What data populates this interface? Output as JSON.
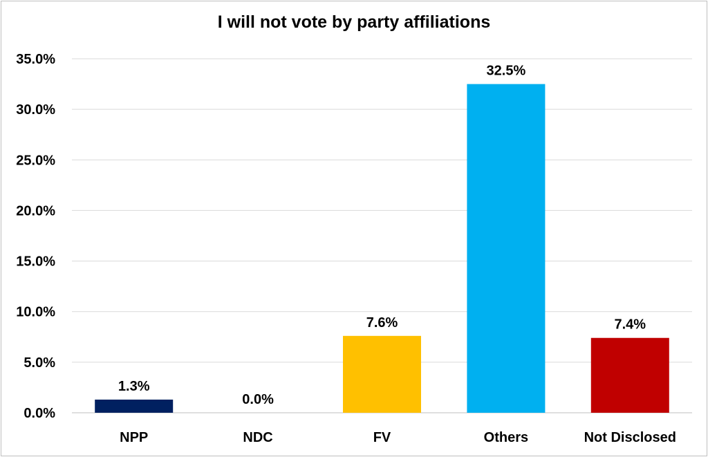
{
  "chart_data": {
    "type": "bar",
    "title": "I will not vote by party affiliations",
    "categories": [
      "NPP",
      "NDC",
      "FV",
      "Others",
      "Not Disclosed"
    ],
    "values": [
      1.3,
      0.0,
      7.6,
      32.5,
      7.4
    ],
    "data_labels": [
      "1.3%",
      "0.0%",
      "7.6%",
      "32.5%",
      "7.4%"
    ],
    "colors": [
      "#002060",
      "#4472c4",
      "#ffc000",
      "#00b0f0",
      "#c00000"
    ],
    "yticks": [
      0,
      5,
      10,
      15,
      20,
      25,
      30,
      35
    ],
    "ytick_labels": [
      "0.0%",
      "5.0%",
      "10.0%",
      "15.0%",
      "20.0%",
      "25.0%",
      "30.0%",
      "35.0%"
    ],
    "ylim": [
      0,
      35
    ],
    "xlabel": "",
    "ylabel": "",
    "grid": true,
    "legend": "none"
  }
}
